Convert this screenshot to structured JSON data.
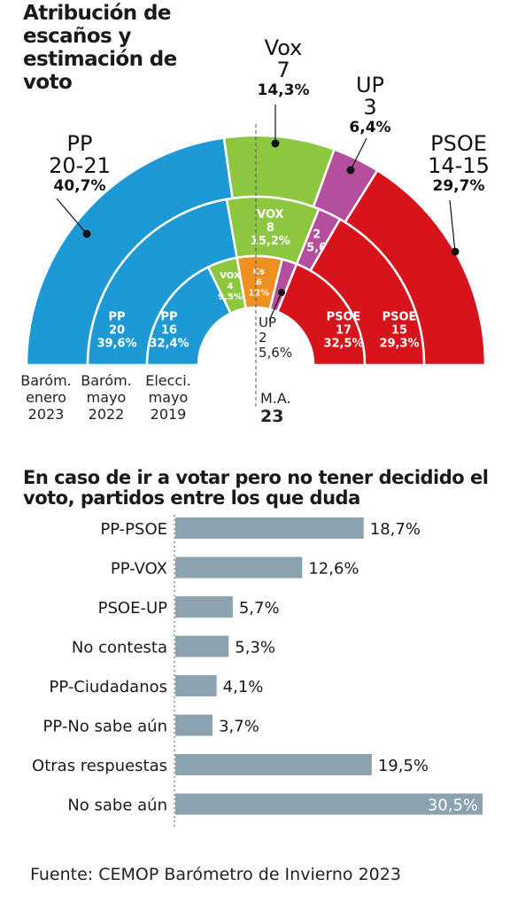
{
  "titles": {
    "hemicycle": "Atribución de escaños y estimación de voto",
    "bars": "En caso de ir a votar pero no tener decidido el voto, partidos entre los que duda",
    "source": "Fuente: CEMOP Barómetro de Invierno 2023"
  },
  "callouts": {
    "pp": {
      "name": "PP",
      "seats": "20-21",
      "pct": "40,7%"
    },
    "vox": {
      "name": "Vox",
      "seats": "7",
      "pct": "14,3%"
    },
    "up": {
      "name": "UP",
      "seats": "3",
      "pct": "6,4%"
    },
    "psoe": {
      "name": "PSOE",
      "seats": "14-15",
      "pct": "29,7%"
    }
  },
  "ring_labels": {
    "outer": "Baróm. enero 2023",
    "middle": "Baróm. mayo 2022",
    "inner": "Elecci. mayo 2019"
  },
  "majority": {
    "label": "M.A.",
    "value": "23"
  },
  "colors": {
    "PP": "#1d9ad6",
    "VOX": "#8dc63f",
    "UP": "#b44f9d",
    "PSOE": "#d7141b",
    "Cs": "#f0901e",
    "bar": "#8aa3ae"
  },
  "chart_data": [
    {
      "type": "hemicycle",
      "rings": [
        {
          "name": "Baróm. enero 2023",
          "parties": [
            {
              "party": "PP",
              "seats": 20.5
            },
            {
              "party": "VOX",
              "seats": 7
            },
            {
              "party": "UP",
              "seats": 3
            },
            {
              "party": "PSOE",
              "seats": 14.5
            }
          ]
        },
        {
          "name": "Baróm. mayo 2022",
          "parties": [
            {
              "party": "PP",
              "seats": 20,
              "label": [
                "PP",
                "20",
                "39,6%"
              ]
            },
            {
              "party": "VOX",
              "seats": 8,
              "label": [
                "VOX",
                "8",
                "15,2%"
              ]
            },
            {
              "party": "UP",
              "seats": 2,
              "label": [
                "2",
                "5,6"
              ]
            },
            {
              "party": "PSOE",
              "seats": 15,
              "label": [
                "PSOE",
                "15",
                "29,3%"
              ]
            }
          ]
        },
        {
          "name": "Elecci. mayo 2019",
          "parties": [
            {
              "party": "PP",
              "seats": 16,
              "label": [
                "PP",
                "16",
                "32,4%"
              ]
            },
            {
              "party": "VOX",
              "seats": 4,
              "label": [
                "VOX",
                "4",
                "9,5%"
              ]
            },
            {
              "party": "Cs",
              "seats": 6,
              "label": [
                "Cs",
                "6",
                "12%"
              ]
            },
            {
              "party": "UP",
              "seats": 2,
              "label": [
                "UP",
                "2",
                "5,6%"
              ]
            },
            {
              "party": "PSOE",
              "seats": 17,
              "label": [
                "PSOE",
                "17",
                "32,5%"
              ]
            }
          ]
        }
      ]
    },
    {
      "type": "bar",
      "orientation": "horizontal",
      "categories": [
        "PP-PSOE",
        "PP-VOX",
        "PSOE-UP",
        "No contesta",
        "PP-Ciudadanos",
        "PP-No sabe aún",
        "Otras respuestas",
        "No sabe aún"
      ],
      "values": [
        18.7,
        12.6,
        5.7,
        5.3,
        4.1,
        3.7,
        19.5,
        30.5
      ],
      "value_labels": [
        "18,7%",
        "12,6%",
        "5,7%",
        "5,3%",
        "4,1%",
        "3,7%",
        "19,5%",
        "30,5%"
      ],
      "xlim": [
        0,
        30.5
      ]
    }
  ]
}
